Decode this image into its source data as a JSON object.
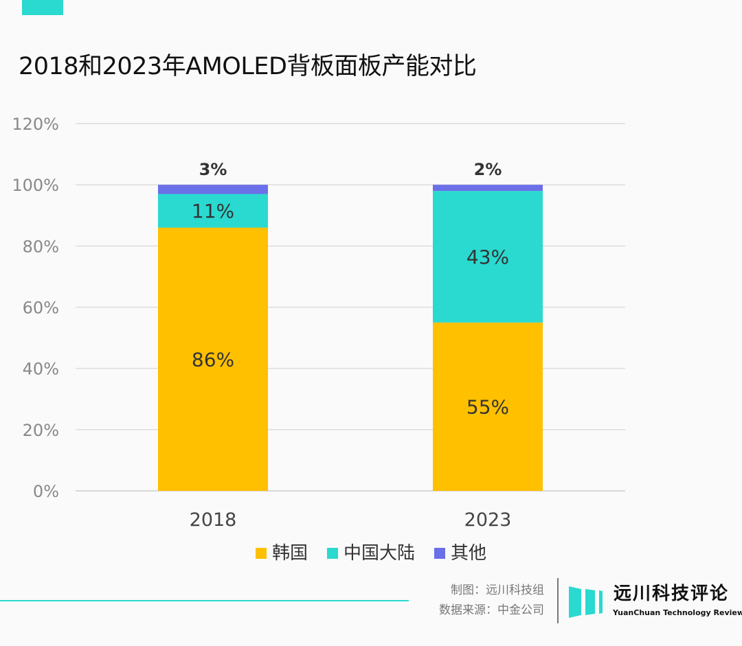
{
  "title": "2018和2023年AMOLED背板面板产能对比",
  "chart_data": {
    "type": "bar",
    "stacked": true,
    "title": "2018和2023年AMOLED背板面板产能对比",
    "categories": [
      "2018",
      "2023"
    ],
    "series": [
      {
        "name": "韩国",
        "values": [
          86,
          55
        ],
        "labels": [
          "86%",
          "55%"
        ],
        "color": "#FFC000"
      },
      {
        "name": "中国大陆",
        "values": [
          11,
          43
        ],
        "labels": [
          "11%",
          "43%"
        ],
        "color": "#2AD9CF"
      },
      {
        "name": "其他",
        "values": [
          3,
          2
        ],
        "labels": [
          "3%",
          "2%"
        ],
        "color": "#6B6FE8"
      }
    ],
    "yticks": [
      "0%",
      "20%",
      "40%",
      "60%",
      "80%",
      "100%",
      "120%"
    ],
    "ylim": [
      0,
      120
    ],
    "grid": true,
    "legend": "bottom"
  },
  "footer": {
    "credit": "制图：远川科技组",
    "source": "数据来源：中金公司",
    "logo_cn": "远川科技评论",
    "logo_en": "YuanChuan Technology Review"
  }
}
